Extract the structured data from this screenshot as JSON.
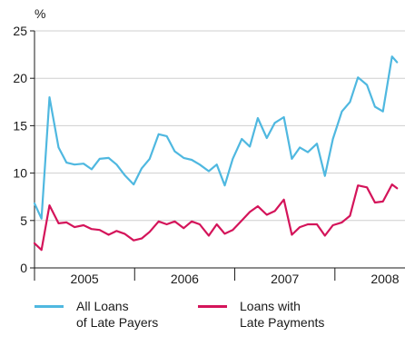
{
  "chart_data": {
    "type": "line",
    "y_unit": "%",
    "ylim": [
      0,
      25
    ],
    "y_ticks": [
      0,
      5,
      10,
      15,
      20,
      25
    ],
    "x_range": [
      2004.5,
      2008.2
    ],
    "x_ticks": [
      {
        "label": "2005",
        "x": 2005.0
      },
      {
        "label": "2006",
        "x": 2006.0
      },
      {
        "label": "2007",
        "x": 2007.0
      },
      {
        "label": "2008",
        "x": 2008.0
      }
    ],
    "x_boundaries": [
      2004.5,
      2005.5,
      2006.5,
      2007.5
    ],
    "grid": "horizontal",
    "series": [
      {
        "name": "All  Loans\nof Late Payers",
        "color": "#4fb8e0",
        "points": [
          [
            2004.5,
            6.8
          ],
          [
            2004.57,
            5.2
          ],
          [
            2004.65,
            18.0
          ],
          [
            2004.74,
            12.7
          ],
          [
            2004.82,
            11.1
          ],
          [
            2004.9,
            10.9
          ],
          [
            2004.99,
            11.0
          ],
          [
            2005.07,
            10.4
          ],
          [
            2005.15,
            11.5
          ],
          [
            2005.24,
            11.6
          ],
          [
            2005.32,
            10.9
          ],
          [
            2005.4,
            9.8
          ],
          [
            2005.49,
            8.8
          ],
          [
            2005.57,
            10.5
          ],
          [
            2005.65,
            11.5
          ],
          [
            2005.74,
            14.1
          ],
          [
            2005.82,
            13.9
          ],
          [
            2005.9,
            12.3
          ],
          [
            2005.99,
            11.6
          ],
          [
            2006.07,
            11.4
          ],
          [
            2006.15,
            10.9
          ],
          [
            2006.24,
            10.2
          ],
          [
            2006.32,
            10.9
          ],
          [
            2006.4,
            8.7
          ],
          [
            2006.48,
            11.5
          ],
          [
            2006.57,
            13.6
          ],
          [
            2006.65,
            12.8
          ],
          [
            2006.73,
            15.8
          ],
          [
            2006.82,
            13.7
          ],
          [
            2006.9,
            15.3
          ],
          [
            2006.99,
            15.9
          ],
          [
            2007.07,
            11.5
          ],
          [
            2007.15,
            12.7
          ],
          [
            2007.23,
            12.2
          ],
          [
            2007.32,
            13.1
          ],
          [
            2007.4,
            9.7
          ],
          [
            2007.48,
            13.6
          ],
          [
            2007.57,
            16.5
          ],
          [
            2007.65,
            17.5
          ],
          [
            2007.73,
            20.1
          ],
          [
            2007.82,
            19.3
          ],
          [
            2007.9,
            17.0
          ],
          [
            2007.98,
            16.5
          ],
          [
            2008.07,
            22.3
          ],
          [
            2008.12,
            21.7
          ]
        ]
      },
      {
        "name": "Loans with\nLate Payments",
        "color": "#d4145a",
        "points": [
          [
            2004.5,
            2.6
          ],
          [
            2004.57,
            1.9
          ],
          [
            2004.65,
            6.6
          ],
          [
            2004.74,
            4.7
          ],
          [
            2004.82,
            4.8
          ],
          [
            2004.9,
            4.3
          ],
          [
            2004.99,
            4.5
          ],
          [
            2005.07,
            4.1
          ],
          [
            2005.15,
            4.0
          ],
          [
            2005.24,
            3.5
          ],
          [
            2005.32,
            3.9
          ],
          [
            2005.4,
            3.6
          ],
          [
            2005.49,
            2.9
          ],
          [
            2005.57,
            3.1
          ],
          [
            2005.65,
            3.8
          ],
          [
            2005.74,
            4.9
          ],
          [
            2005.82,
            4.6
          ],
          [
            2005.9,
            4.9
          ],
          [
            2005.99,
            4.2
          ],
          [
            2006.07,
            4.9
          ],
          [
            2006.15,
            4.6
          ],
          [
            2006.24,
            3.4
          ],
          [
            2006.32,
            4.6
          ],
          [
            2006.4,
            3.6
          ],
          [
            2006.48,
            4.0
          ],
          [
            2006.57,
            5.0
          ],
          [
            2006.65,
            5.9
          ],
          [
            2006.73,
            6.5
          ],
          [
            2006.82,
            5.6
          ],
          [
            2006.9,
            6.0
          ],
          [
            2006.99,
            7.2
          ],
          [
            2007.07,
            3.5
          ],
          [
            2007.15,
            4.3
          ],
          [
            2007.23,
            4.6
          ],
          [
            2007.32,
            4.6
          ],
          [
            2007.4,
            3.4
          ],
          [
            2007.48,
            4.5
          ],
          [
            2007.57,
            4.8
          ],
          [
            2007.65,
            5.5
          ],
          [
            2007.73,
            8.7
          ],
          [
            2007.82,
            8.5
          ],
          [
            2007.9,
            6.9
          ],
          [
            2007.98,
            7.0
          ],
          [
            2008.07,
            8.8
          ],
          [
            2008.12,
            8.4
          ]
        ]
      }
    ],
    "legend_position": "bottom"
  }
}
